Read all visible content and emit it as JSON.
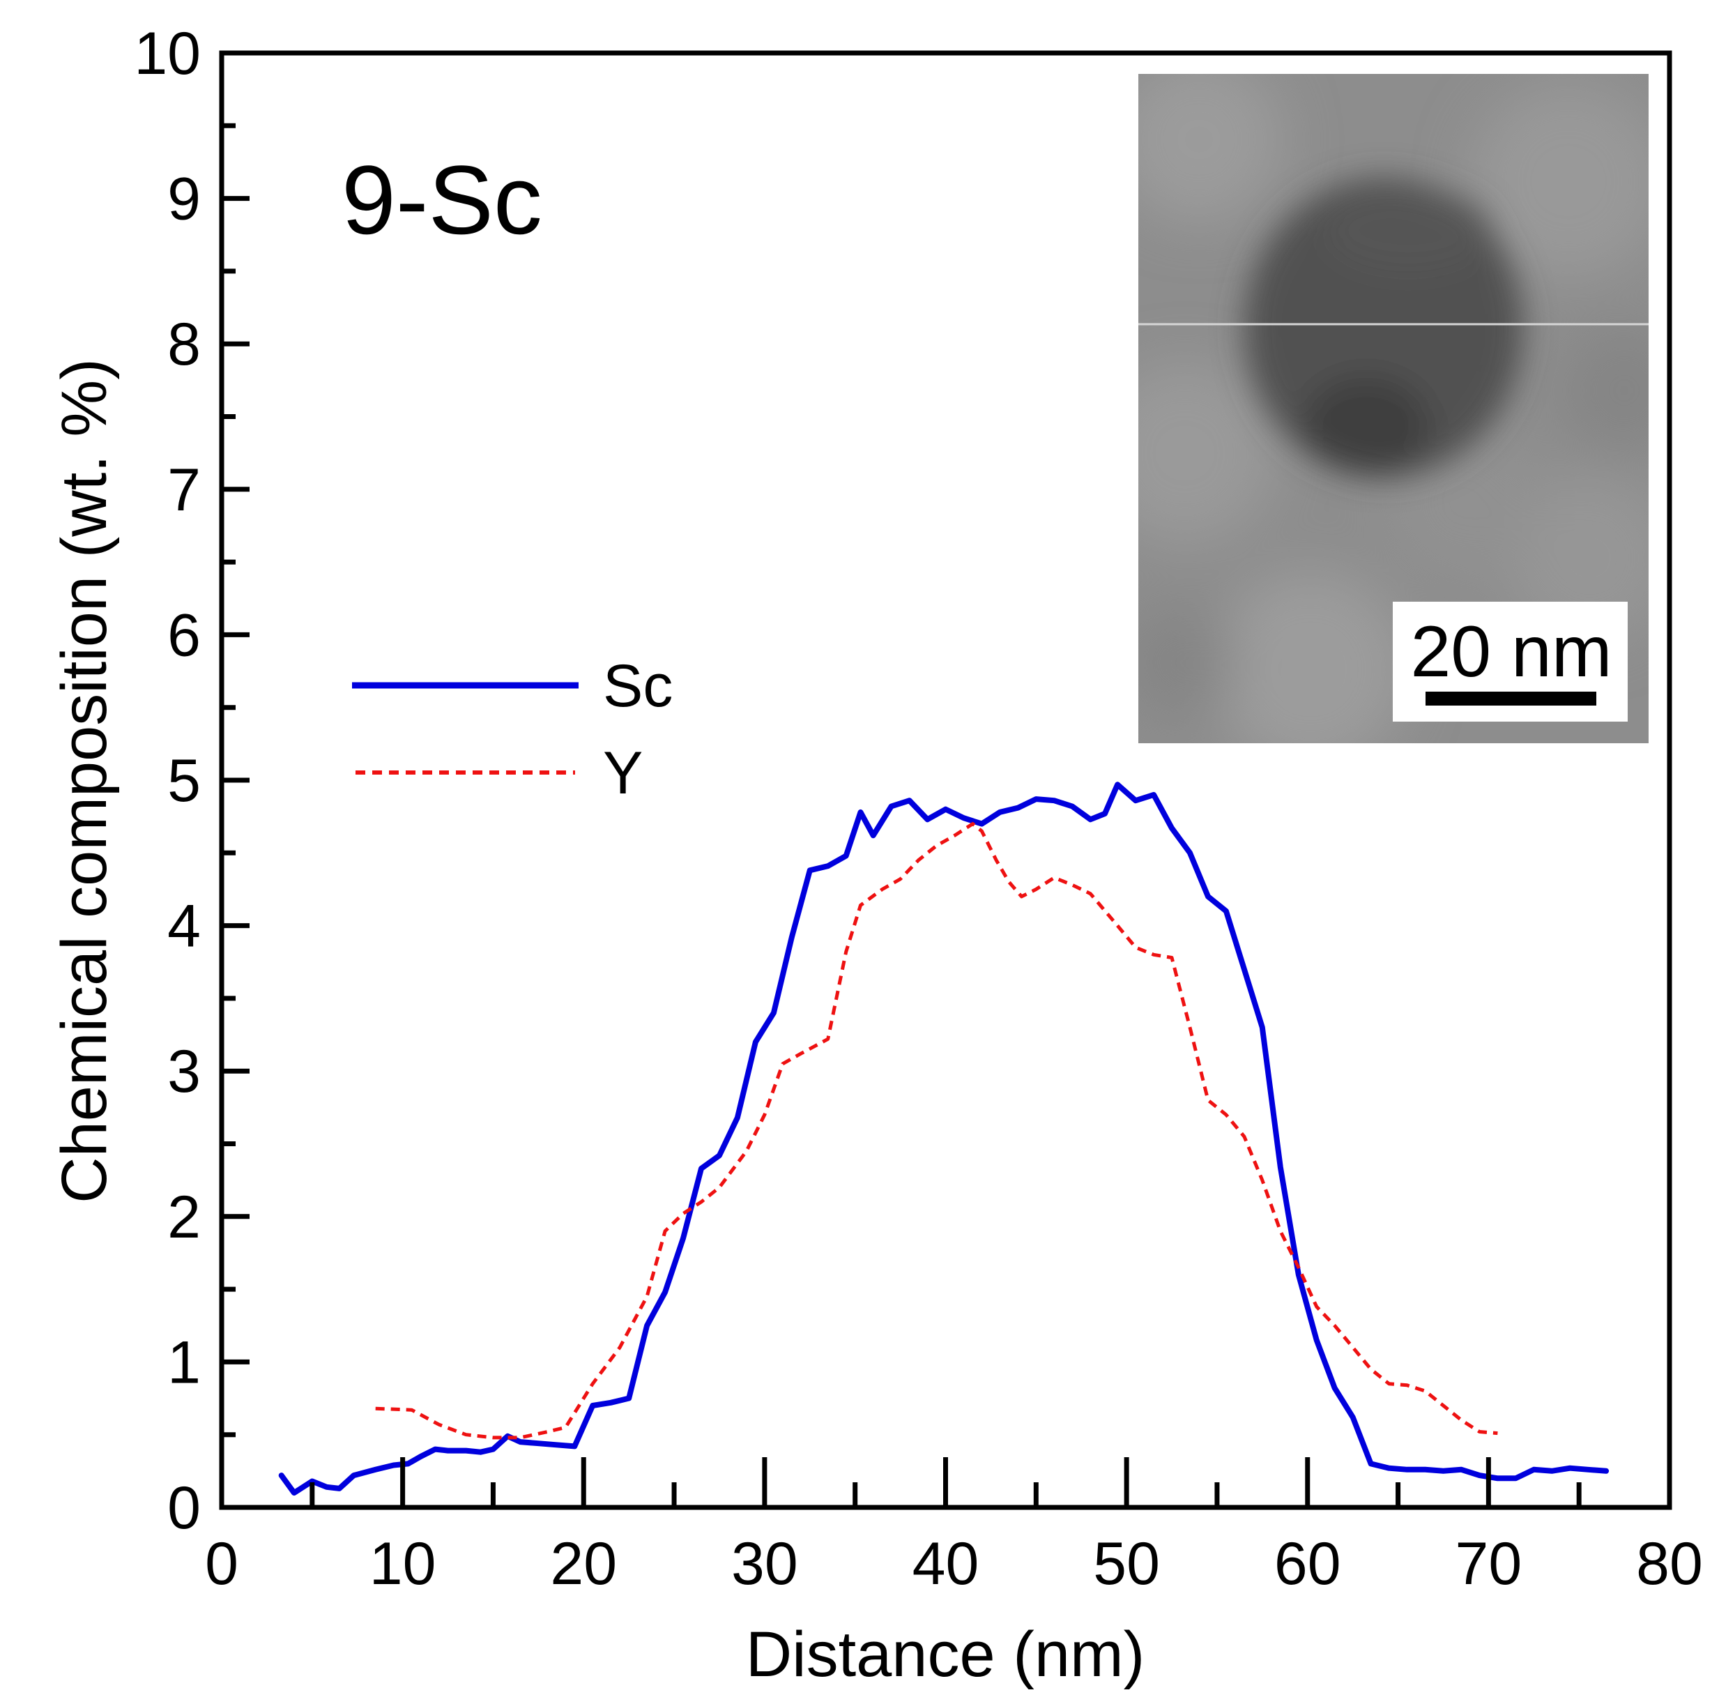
{
  "chart_data": {
    "type": "line",
    "title": "",
    "panel_label": "9-Sc",
    "xlabel": "Distance (nm)",
    "ylabel": "Chemical composition (wt. %)",
    "xlim": [
      0,
      80
    ],
    "ylim": [
      0,
      10
    ],
    "x_ticks": [
      0,
      10,
      20,
      30,
      40,
      50,
      60,
      70,
      80
    ],
    "y_ticks": [
      0,
      1,
      2,
      3,
      4,
      5,
      6,
      7,
      8,
      9,
      10
    ],
    "x_tick_labels": [
      "0",
      "10",
      "20",
      "30",
      "40",
      "50",
      "60",
      "70",
      "80"
    ],
    "y_tick_labels": [
      "0",
      "1",
      "2",
      "3",
      "4",
      "5",
      "6",
      "7",
      "8",
      "9",
      "10"
    ],
    "grid": false,
    "legend_position": "left-middle",
    "series": [
      {
        "name": "Sc",
        "color": "#0000dd",
        "style": "solid",
        "x": [
          3.3,
          4.0,
          5.0,
          5.8,
          6.5,
          7.3,
          8.5,
          9.5,
          10.3,
          11.0,
          11.8,
          12.5,
          13.5,
          14.3,
          15.0,
          15.8,
          16.5,
          17.5,
          18.5,
          19.5,
          20.5,
          21.5,
          22.5,
          23.5,
          24.5,
          25.5,
          26.5,
          27.5,
          28.5,
          29.5,
          30.5,
          31.5,
          32.5,
          33.5,
          34.5,
          35.3,
          36.0,
          37.0,
          38.0,
          39.0,
          40.0,
          41.0,
          42.0,
          43.0,
          44.0,
          45.0,
          46.0,
          47.0,
          48.0,
          48.8,
          49.5,
          50.5,
          51.5,
          52.5,
          53.5,
          54.5,
          55.5,
          56.5,
          57.5,
          58.5,
          59.5,
          60.5,
          61.5,
          62.5,
          63.5,
          64.5,
          65.5,
          66.5,
          67.5,
          68.5,
          69.5,
          70.5,
          71.5,
          72.5,
          73.5,
          74.5,
          75.5,
          76.5
        ],
        "y": [
          0.22,
          0.1,
          0.18,
          0.14,
          0.13,
          0.22,
          0.26,
          0.29,
          0.3,
          0.35,
          0.4,
          0.39,
          0.39,
          0.38,
          0.4,
          0.49,
          0.45,
          0.44,
          0.43,
          0.42,
          0.7,
          0.72,
          0.75,
          1.25,
          1.48,
          1.85,
          2.33,
          2.42,
          2.68,
          3.2,
          3.4,
          3.92,
          4.38,
          4.41,
          4.48,
          4.78,
          4.62,
          4.82,
          4.86,
          4.73,
          4.8,
          4.74,
          4.7,
          4.78,
          4.81,
          4.87,
          4.86,
          4.82,
          4.73,
          4.77,
          4.97,
          4.86,
          4.9,
          4.67,
          4.5,
          4.2,
          4.1,
          3.7,
          3.3,
          2.34,
          1.6,
          1.15,
          0.82,
          0.62,
          0.3,
          0.27,
          0.26,
          0.26,
          0.25,
          0.26,
          0.22,
          0.2,
          0.2,
          0.26,
          0.25,
          0.27,
          0.26,
          0.25
        ]
      },
      {
        "name": "Y",
        "color": "#ee1111",
        "style": "dashed",
        "x": [
          8.5,
          10.5,
          12.0,
          13.5,
          15.0,
          16.5,
          18.0,
          19.0,
          20.5,
          22.0,
          23.5,
          24.5,
          25.5,
          26.5,
          27.5,
          29.0,
          30.0,
          31.0,
          32.0,
          33.5,
          34.5,
          35.3,
          36.5,
          37.5,
          38.5,
          39.5,
          40.5,
          41.5,
          42.0,
          42.8,
          43.5,
          44.2,
          45.0,
          46.0,
          47.0,
          48.0,
          49.5,
          50.5,
          51.5,
          52.5,
          53.5,
          54.5,
          55.5,
          56.5,
          57.5,
          58.5,
          59.5,
          60.5,
          61.5,
          62.5,
          63.5,
          64.5,
          65.5,
          66.5,
          67.5,
          68.5,
          69.5,
          70.5
        ],
        "y": [
          0.68,
          0.67,
          0.57,
          0.5,
          0.48,
          0.48,
          0.52,
          0.55,
          0.85,
          1.1,
          1.45,
          1.9,
          2.02,
          2.1,
          2.2,
          2.45,
          2.7,
          3.05,
          3.12,
          3.22,
          3.82,
          4.14,
          4.25,
          4.32,
          4.45,
          4.55,
          4.62,
          4.7,
          4.65,
          4.45,
          4.3,
          4.2,
          4.25,
          4.33,
          4.28,
          4.22,
          4.0,
          3.85,
          3.8,
          3.78,
          3.3,
          2.8,
          2.7,
          2.55,
          2.25,
          1.9,
          1.65,
          1.38,
          1.25,
          1.1,
          0.95,
          0.85,
          0.84,
          0.8,
          0.7,
          0.6,
          0.52,
          0.51
        ]
      }
    ],
    "inset": {
      "description": "STEM micrograph inset",
      "scale_bar_label": "20 nm"
    }
  }
}
